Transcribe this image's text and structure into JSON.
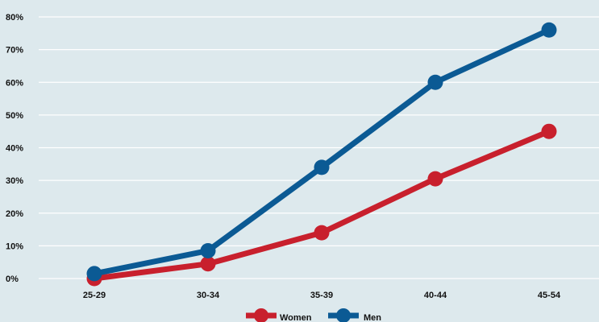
{
  "chart_data": {
    "type": "line",
    "categories": [
      "25-29",
      "30-34",
      "35-39",
      "40-44",
      "45-54"
    ],
    "series": [
      {
        "name": "Women",
        "values": [
          0,
          4.5,
          14,
          30.5,
          45
        ],
        "color": "#c8202d"
      },
      {
        "name": "Men",
        "values": [
          1.5,
          8.5,
          34,
          60,
          76
        ],
        "color": "#0b5a94"
      }
    ],
    "ylim": [
      0,
      80
    ],
    "yticks": [
      "0%",
      "10%",
      "20%",
      "30%",
      "40%",
      "50%",
      "60%",
      "70%",
      "80%"
    ],
    "grid": true,
    "legend": "bottom-center",
    "background": "#dde9ed",
    "grid_color": "#ffffff"
  }
}
